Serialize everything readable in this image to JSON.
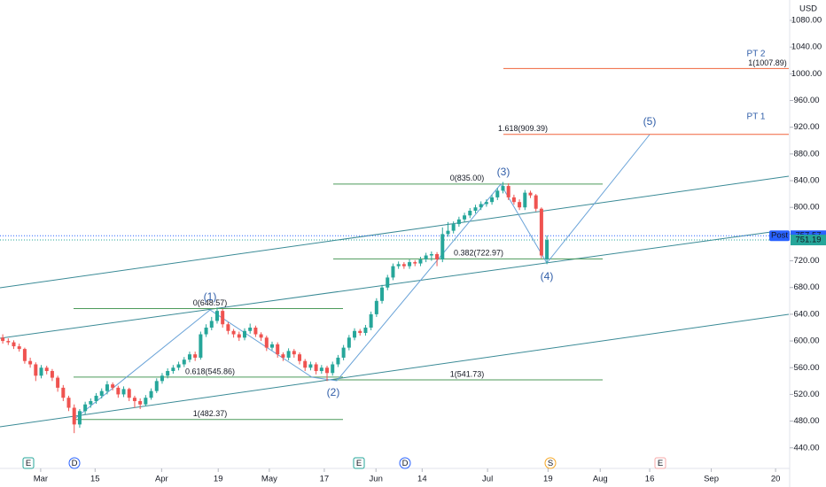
{
  "chart_data": {
    "type": "candlestick",
    "currency": "USD",
    "up_color": "#26a69a",
    "down_color": "#ef5350",
    "open": [
      605,
      600,
      598,
      592,
      588,
      570,
      565,
      548,
      560,
      555,
      545,
      530,
      515,
      500,
      475,
      495,
      505,
      510,
      518,
      525,
      535,
      530,
      520,
      528,
      515,
      510,
      505,
      515,
      525,
      540,
      548,
      555,
      560,
      565,
      572,
      580,
      575,
      610,
      620,
      630,
      645,
      625,
      615,
      610,
      605,
      615,
      620,
      610,
      605,
      590,
      595,
      580,
      575,
      585,
      580,
      570,
      560,
      565,
      555,
      560,
      552,
      565,
      575,
      590,
      605,
      615,
      612,
      620,
      640,
      660,
      680,
      695,
      712,
      715,
      712,
      718,
      716,
      722,
      728,
      730,
      722,
      760,
      765,
      775,
      782,
      788,
      795,
      800,
      805,
      808,
      815,
      825,
      832,
      815,
      808,
      800,
      822,
      818,
      798,
      722
    ],
    "high": [
      610,
      604,
      601,
      596,
      590,
      575,
      568,
      564,
      563,
      558,
      548,
      534,
      518,
      505,
      498,
      509,
      514,
      522,
      529,
      540,
      538,
      533,
      532,
      530,
      518,
      514,
      519,
      529,
      544,
      552,
      559,
      564,
      569,
      576,
      584,
      584,
      614,
      625,
      636,
      650,
      648,
      628,
      618,
      614,
      619,
      626,
      623,
      613,
      608,
      599,
      598,
      583,
      589,
      588,
      583,
      573,
      569,
      568,
      564,
      563,
      569,
      579,
      594,
      609,
      619,
      618,
      624,
      644,
      664,
      684,
      699,
      716,
      719,
      718,
      722,
      721,
      726,
      732,
      734,
      733,
      770,
      778,
      779,
      786,
      792,
      799,
      804,
      809,
      812,
      819,
      829,
      838,
      836,
      819,
      812,
      826,
      825,
      820,
      800,
      758
    ],
    "low": [
      596,
      594,
      588,
      584,
      566,
      560,
      540,
      544,
      550,
      540,
      524,
      510,
      495,
      462,
      470,
      490,
      500,
      506,
      514,
      520,
      526,
      515,
      516,
      510,
      500,
      498,
      502,
      512,
      522,
      536,
      544,
      551,
      556,
      561,
      568,
      570,
      572,
      606,
      616,
      626,
      620,
      610,
      605,
      600,
      601,
      611,
      606,
      600,
      585,
      586,
      575,
      570,
      571,
      575,
      565,
      555,
      556,
      550,
      551,
      540,
      548,
      561,
      571,
      586,
      601,
      608,
      608,
      616,
      636,
      656,
      676,
      691,
      708,
      708,
      708,
      712,
      712,
      718,
      720,
      712,
      718,
      756,
      761,
      771,
      778,
      784,
      791,
      796,
      801,
      804,
      811,
      821,
      811,
      804,
      796,
      796,
      814,
      794,
      724,
      715
    ],
    "close": [
      600,
      598,
      592,
      588,
      570,
      565,
      548,
      560,
      555,
      545,
      530,
      515,
      500,
      475,
      495,
      505,
      510,
      518,
      525,
      535,
      530,
      520,
      528,
      515,
      510,
      505,
      515,
      525,
      540,
      548,
      555,
      560,
      565,
      572,
      580,
      575,
      610,
      620,
      630,
      645,
      625,
      615,
      610,
      605,
      615,
      620,
      610,
      605,
      590,
      595,
      580,
      575,
      585,
      580,
      570,
      560,
      565,
      555,
      560,
      552,
      565,
      575,
      590,
      605,
      615,
      612,
      620,
      640,
      660,
      680,
      695,
      712,
      715,
      712,
      718,
      716,
      722,
      728,
      730,
      722,
      760,
      765,
      775,
      782,
      788,
      795,
      800,
      805,
      808,
      815,
      825,
      832,
      815,
      808,
      800,
      822,
      818,
      798,
      728,
      751.19
    ],
    "xlim": [
      -0.5,
      143
    ],
    "xticks": [
      {
        "value": 6.9,
        "label": "Mar"
      },
      {
        "value": 16.8,
        "label": "15"
      },
      {
        "value": 28.9,
        "label": "Apr"
      },
      {
        "value": 39.2,
        "label": "19"
      },
      {
        "value": 48.5,
        "label": "May"
      },
      {
        "value": 58.5,
        "label": "17"
      },
      {
        "value": 67.9,
        "label": "Jun"
      },
      {
        "value": 76.3,
        "label": "14"
      },
      {
        "value": 88.2,
        "label": "Jul"
      },
      {
        "value": 99.2,
        "label": "19"
      },
      {
        "value": 108.7,
        "label": "Aug"
      },
      {
        "value": 117.7,
        "label": "16"
      },
      {
        "value": 128.9,
        "label": "Sep"
      },
      {
        "value": 140.6,
        "label": "20"
      }
    ],
    "ylim": [
      409.2,
      1110.5
    ],
    "yticks": [
      {
        "value": 440,
        "label": "440.00"
      },
      {
        "value": 480,
        "label": "480.00"
      },
      {
        "value": 520,
        "label": "520.00"
      },
      {
        "value": 560,
        "label": "560.00"
      },
      {
        "value": 600,
        "label": "600.00"
      },
      {
        "value": 640,
        "label": "640.00"
      },
      {
        "value": 680,
        "label": "680.00"
      },
      {
        "value": 720,
        "label": "720.00"
      },
      {
        "value": 760,
        "label": "760.00"
      },
      {
        "value": 800,
        "label": "800.00"
      },
      {
        "value": 840,
        "label": "840.00"
      },
      {
        "value": 880,
        "label": "880.00"
      },
      {
        "value": 920,
        "label": "920.00"
      },
      {
        "value": 960,
        "label": "960.00"
      },
      {
        "value": 1000,
        "label": "1000.00"
      },
      {
        "value": 1040,
        "label": "1040.00"
      },
      {
        "value": 1080,
        "label": "1080.00"
      }
    ],
    "price_labels": [
      {
        "name": "Post",
        "value": 757.57,
        "color": "#2962ff"
      },
      {
        "value": 751.19,
        "color": "#26a69a"
      }
    ],
    "levels": [
      {
        "value": 648.57,
        "label": "0(648.57)",
        "color": "#4c9a5a"
      },
      {
        "value": 545.86,
        "label": "0.618(545.86)",
        "color": "#4c9a5a"
      },
      {
        "value": 482.37,
        "label": "1(482.37)",
        "color": "#4c9a5a"
      },
      {
        "value": 835.0,
        "label": "0(835.00)",
        "color": "#4c9a5a"
      },
      {
        "value": 722.97,
        "label": "0.382(722.97)",
        "color": "#4c9a5a"
      },
      {
        "value": 541.73,
        "label": "1(541.73)",
        "color": "#4c9a5a"
      },
      {
        "value": 909.39,
        "label": "1.618(909.39)",
        "color": "#f0643c"
      },
      {
        "value": 1007.89,
        "label": "1(1007.89)",
        "color": "#f0643c"
      }
    ],
    "wave_labels": [
      "(1)",
      "(2)",
      "(3)",
      "(4)",
      "(5)"
    ],
    "targets": [
      "PT 1",
      "PT 2"
    ],
    "events": [
      "E",
      "D",
      "E",
      "D",
      "S",
      "E"
    ]
  }
}
